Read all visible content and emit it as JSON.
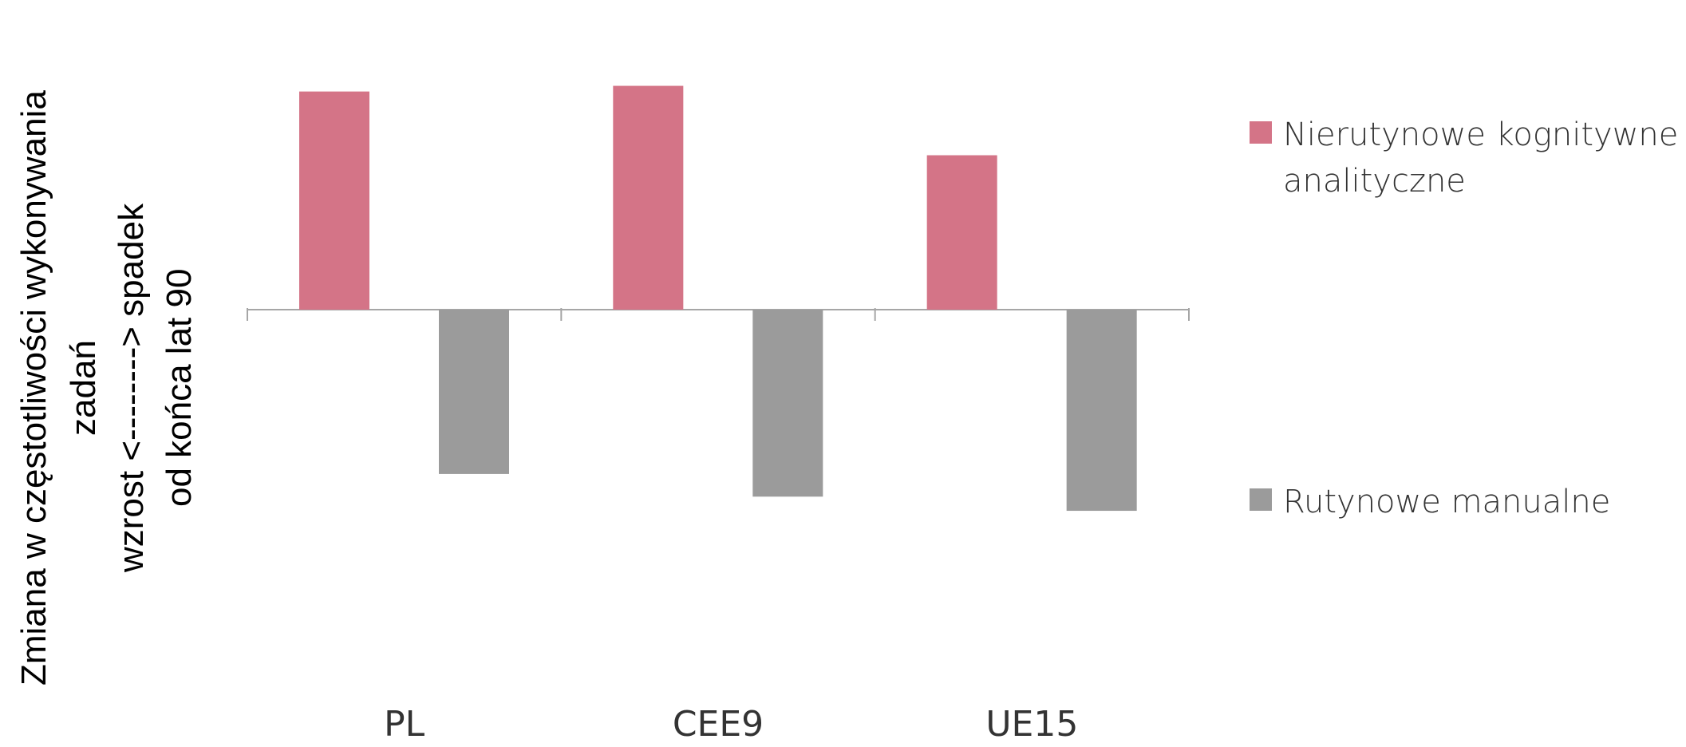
{
  "chart_data": {
    "type": "bar",
    "categories": [
      "PL",
      "CEE9",
      "UE15"
    ],
    "series": [
      {
        "name": "Nierutynowe kognitywne analityczne",
        "values": [
          0.77,
          0.79,
          0.545
        ],
        "color": "#d47487"
      },
      {
        "name": "Rutynowe manualne",
        "values": [
          -0.58,
          -0.66,
          -0.71
        ],
        "color": "#9b9b9b"
      }
    ],
    "ylabel_lines": [
      "Zmiana w częstotliwości wykonywania",
      "zadań",
      "wzrost <--------> spadek",
      "od końca lat 90"
    ],
    "ylim": [
      -1,
      0.8
    ],
    "grid": false,
    "legend_position": "right",
    "legend": [
      "Nierutynowe kognitywne",
      "analityczne"
    ],
    "legend2": "Rutynowe manualne"
  }
}
